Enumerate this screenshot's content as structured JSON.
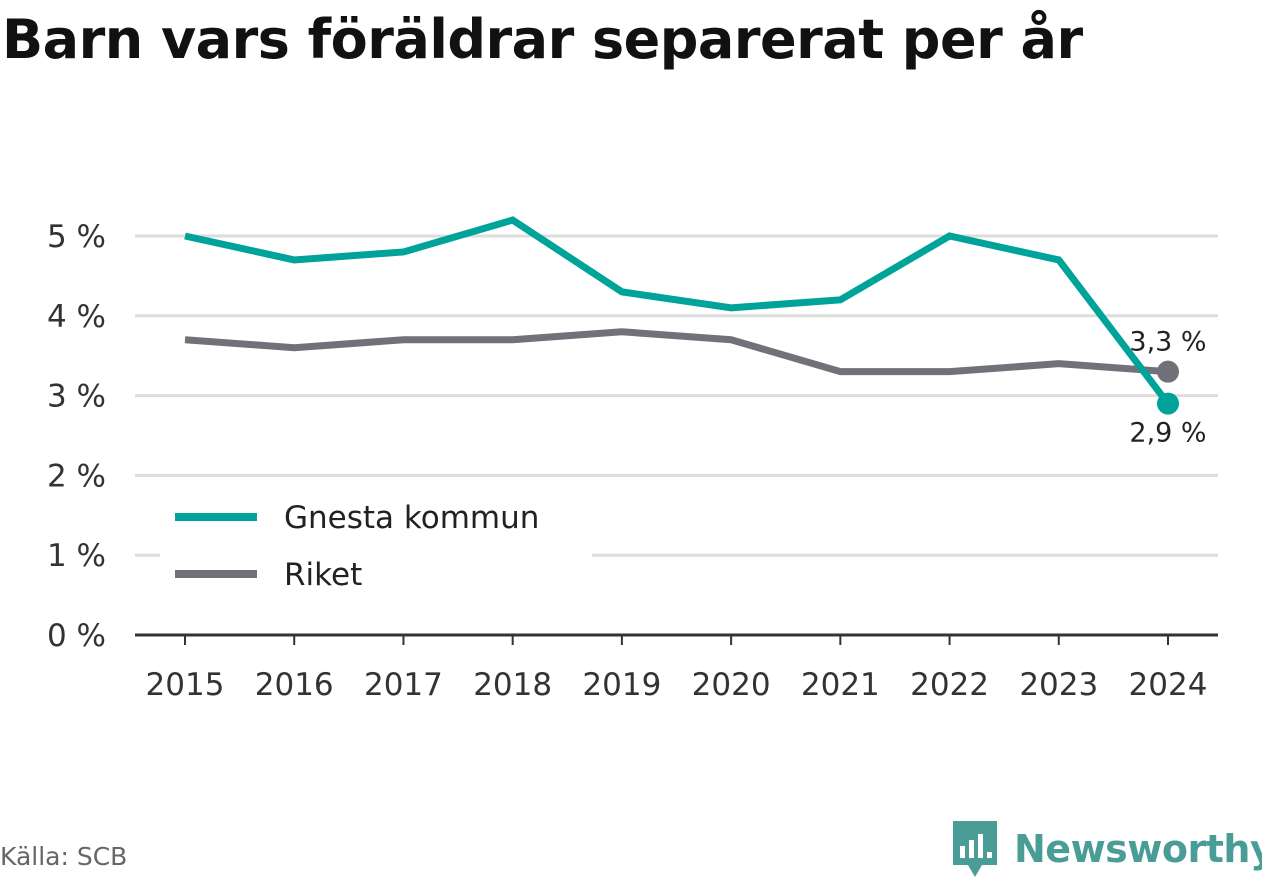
{
  "title": "Barn vars föräldrar separerat per år",
  "source": "Källa: SCB",
  "brand": "Newsworthy",
  "colors": {
    "gnesta": "#00a39a",
    "riket": "#727078",
    "grid": "#dddddd",
    "axis": "#333333",
    "brand": "#4a9d96"
  },
  "chart_data": {
    "type": "line",
    "title": "Barn vars föräldrar separerat per år",
    "xlabel": "",
    "ylabel": "",
    "categories": [
      "2015",
      "2016",
      "2017",
      "2018",
      "2019",
      "2020",
      "2021",
      "2022",
      "2023",
      "2024"
    ],
    "yticks": [
      0,
      1,
      2,
      3,
      4,
      5
    ],
    "ytick_labels": [
      "0 %",
      "1 %",
      "2 %",
      "3 %",
      "4 %",
      "5 %"
    ],
    "ylim": [
      0,
      5.5
    ],
    "grid": true,
    "legend_position": "bottom-left",
    "series": [
      {
        "name": "Gnesta kommun",
        "color": "#00a39a",
        "values": [
          5.0,
          4.7,
          4.8,
          5.2,
          4.3,
          4.1,
          4.2,
          5.0,
          4.7,
          2.9
        ],
        "end_label": "2,9 %"
      },
      {
        "name": "Riket",
        "color": "#727078",
        "values": [
          3.7,
          3.6,
          3.7,
          3.7,
          3.8,
          3.7,
          3.3,
          3.3,
          3.4,
          3.3
        ],
        "end_label": "3,3 %"
      }
    ]
  }
}
